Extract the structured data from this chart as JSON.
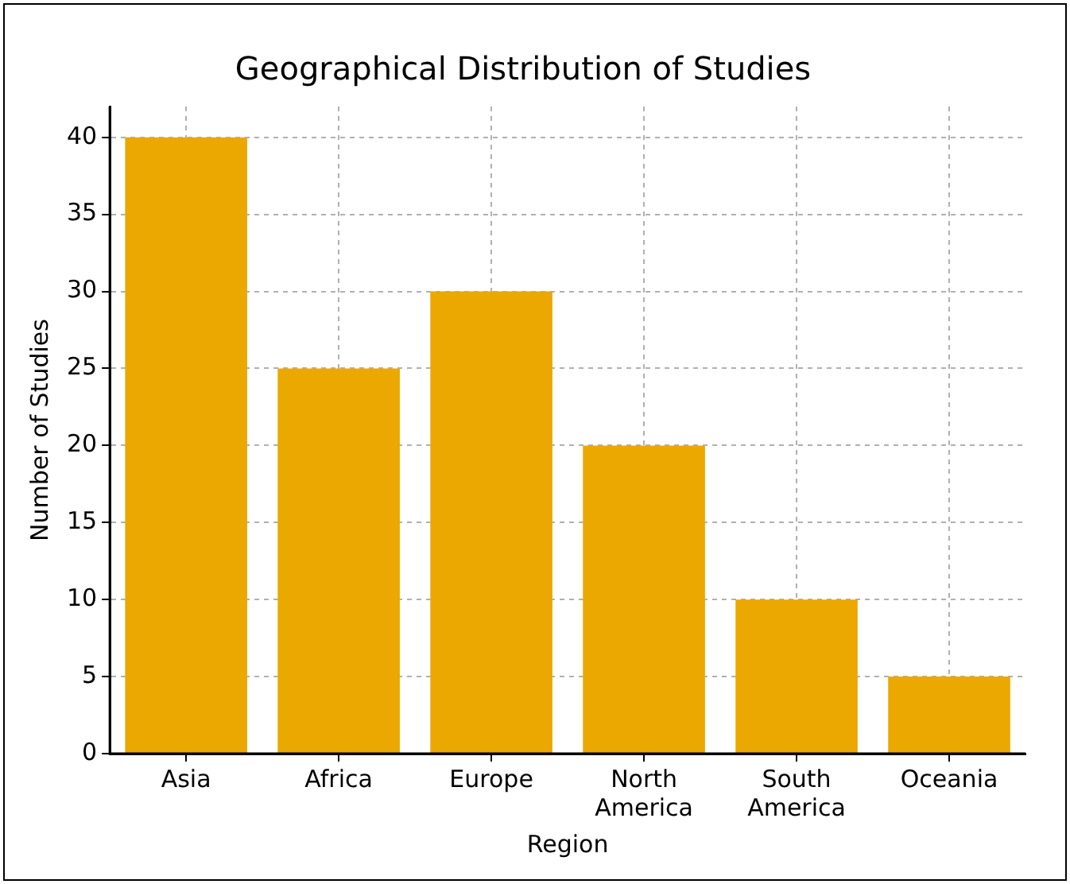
{
  "chart_data": {
    "type": "bar",
    "title": "Geographical Distribution of Studies",
    "xlabel": "Region",
    "ylabel": "Number of Studies",
    "categories": [
      "Asia",
      "Africa",
      "Europe",
      "North America",
      "South America",
      "Oceania"
    ],
    "values": [
      40,
      25,
      30,
      20,
      10,
      5
    ],
    "color": "#eaa800",
    "ylim": [
      0,
      42
    ],
    "yticks": [
      0,
      5,
      10,
      15,
      20,
      25,
      30,
      35,
      40
    ],
    "grid": true
  }
}
